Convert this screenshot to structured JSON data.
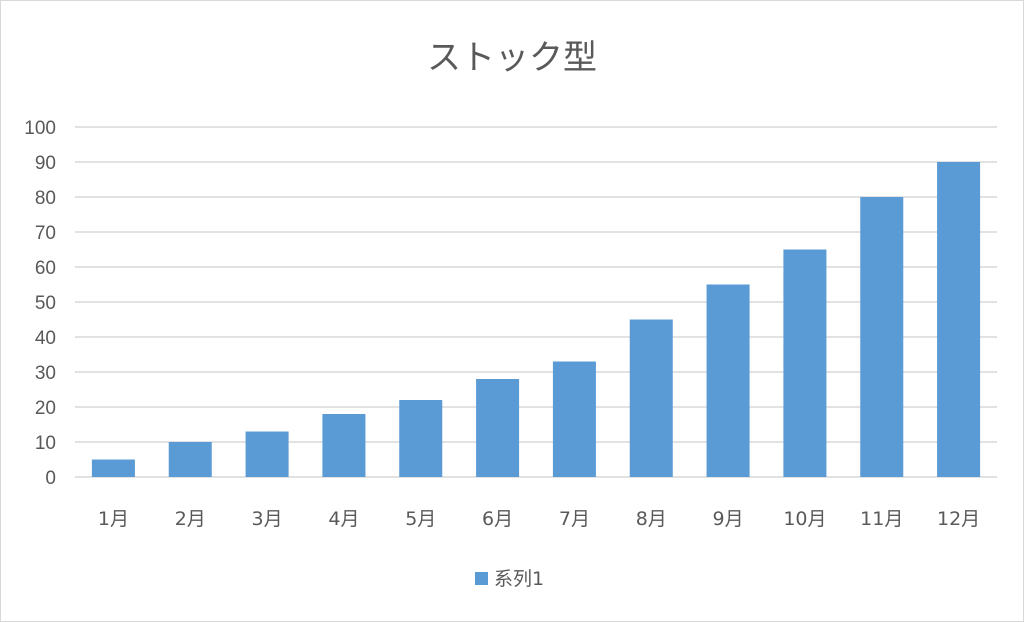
{
  "chart_data": {
    "type": "bar",
    "title": "ストック型",
    "categories": [
      "1月",
      "2月",
      "3月",
      "4月",
      "5月",
      "6月",
      "7月",
      "8月",
      "9月",
      "10月",
      "11月",
      "12月"
    ],
    "series": [
      {
        "name": "系列1",
        "values": [
          5,
          10,
          13,
          18,
          22,
          28,
          33,
          45,
          55,
          65,
          80,
          90
        ]
      }
    ],
    "ylim": [
      0,
      100
    ],
    "yticks": [
      "0",
      "10",
      "20",
      "30",
      "40",
      "50",
      "60",
      "70",
      "80",
      "90",
      "100"
    ],
    "grid": true,
    "legend_position": "bottom",
    "colors": {
      "bar": "#5b9bd5",
      "grid": "#d9d9d9",
      "text": "#595959"
    }
  }
}
